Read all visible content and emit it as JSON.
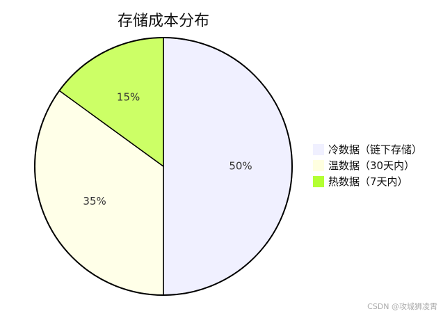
{
  "chart_data": {
    "type": "pie",
    "title": "存储成本分布",
    "categories": [
      "冷数据（链下存储）",
      "温数据（30天内）",
      "热数据（7天内）"
    ],
    "values": [
      50,
      35,
      15
    ],
    "labels": [
      "50%",
      "35%",
      "15%"
    ],
    "colors": [
      "#f0f0ff",
      "#ffffe8",
      "#ccff66"
    ],
    "legend_colors": [
      "#f0f0ff",
      "#ffffe0",
      "#b3ff33"
    ],
    "edge_color": "#000000",
    "start_angle_deg": 90,
    "direction": "clockwise",
    "legend_position": "right"
  },
  "watermark": "CSDN @攻城狮凌霄"
}
